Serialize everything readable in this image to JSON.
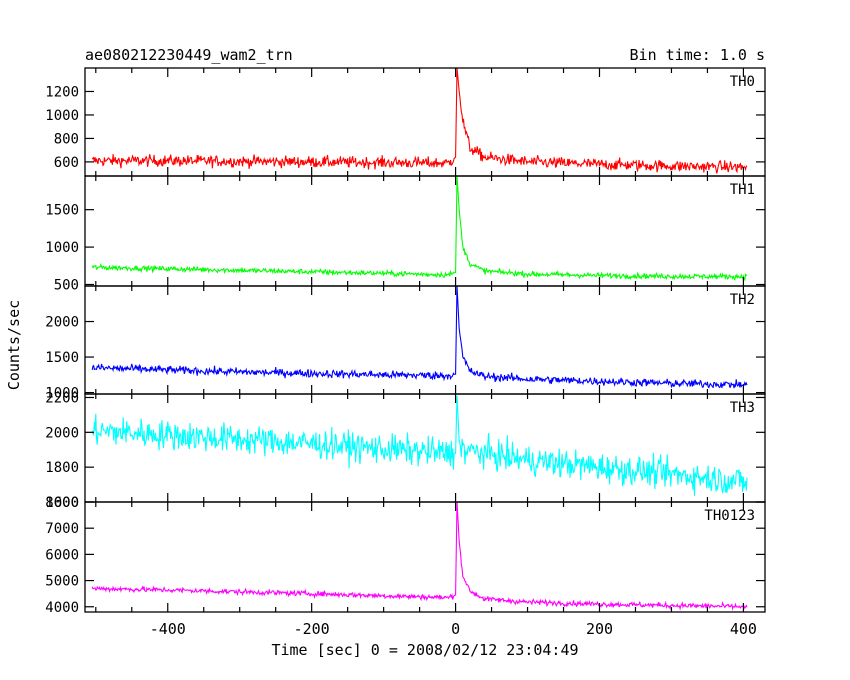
{
  "header": {
    "title": "ae080212230449_wam2_trn",
    "bin_time": "Bin time: 1.0 s"
  },
  "chart_data": {
    "type": "line",
    "xlabel": "Time [sec] 0 = 2008/02/12 23:04:49",
    "ylabel": "Counts/sec",
    "xlim": [
      -515,
      430
    ],
    "x_ticks": [
      -400,
      -200,
      0,
      200,
      400
    ],
    "panels": [
      {
        "name": "TH0",
        "color": "#ff0000",
        "ylim": [
          480,
          1400
        ],
        "y_ticks": [
          600,
          800,
          1000,
          1200
        ],
        "trend_x": [
          -505,
          -400,
          -300,
          -200,
          -100,
          -10,
          0,
          2,
          5,
          10,
          20,
          40,
          100,
          200,
          300,
          405
        ],
        "trend_y": [
          610,
          610,
          605,
          600,
          595,
          590,
          640,
          1400,
          1200,
          950,
          720,
          640,
          600,
          580,
          565,
          555
        ],
        "noise": 35
      },
      {
        "name": "TH1",
        "color": "#00ff00",
        "ylim": [
          480,
          1950
        ],
        "y_ticks": [
          500,
          1000,
          1500
        ],
        "trend_x": [
          -505,
          -400,
          -300,
          -200,
          -100,
          -10,
          0,
          2,
          5,
          10,
          20,
          40,
          100,
          200,
          300,
          405
        ],
        "trend_y": [
          730,
          710,
          690,
          670,
          650,
          630,
          660,
          1950,
          1500,
          1000,
          780,
          680,
          640,
          620,
          610,
          605
        ],
        "noise": 25
      },
      {
        "name": "TH2",
        "color": "#0000ff",
        "ylim": [
          980,
          2500
        ],
        "y_ticks": [
          1000,
          1500,
          2000
        ],
        "trend_x": [
          -505,
          -400,
          -300,
          -200,
          -100,
          -10,
          0,
          2,
          5,
          10,
          20,
          40,
          100,
          200,
          300,
          405
        ],
        "trend_y": [
          1350,
          1320,
          1290,
          1270,
          1250,
          1240,
          1260,
          2500,
          1900,
          1500,
          1300,
          1230,
          1190,
          1160,
          1130,
          1110
        ],
        "noise": 40
      },
      {
        "name": "TH3",
        "color": "#00ffff",
        "ylim": [
          1600,
          2220
        ],
        "y_ticks": [
          1600,
          1800,
          2000,
          2200
        ],
        "trend_x": [
          -505,
          -400,
          -300,
          -200,
          -100,
          -10,
          0,
          2,
          5,
          10,
          100,
          200,
          300,
          405
        ],
        "trend_y": [
          2010,
          1985,
          1960,
          1935,
          1905,
          1880,
          1880,
          2210,
          1950,
          1900,
          1840,
          1800,
          1760,
          1715
        ],
        "noise": 60
      },
      {
        "name": "TH0123",
        "color": "#ff00ff",
        "ylim": [
          3800,
          8000
        ],
        "y_ticks": [
          4000,
          5000,
          6000,
          7000,
          8000
        ],
        "trend_x": [
          -505,
          -400,
          -300,
          -200,
          -100,
          -10,
          0,
          2,
          5,
          10,
          20,
          40,
          100,
          200,
          300,
          405
        ],
        "trend_y": [
          4700,
          4640,
          4570,
          4500,
          4420,
          4350,
          4450,
          8000,
          6500,
          5200,
          4600,
          4300,
          4180,
          4100,
          4050,
          4000
        ],
        "noise": 70
      }
    ]
  }
}
